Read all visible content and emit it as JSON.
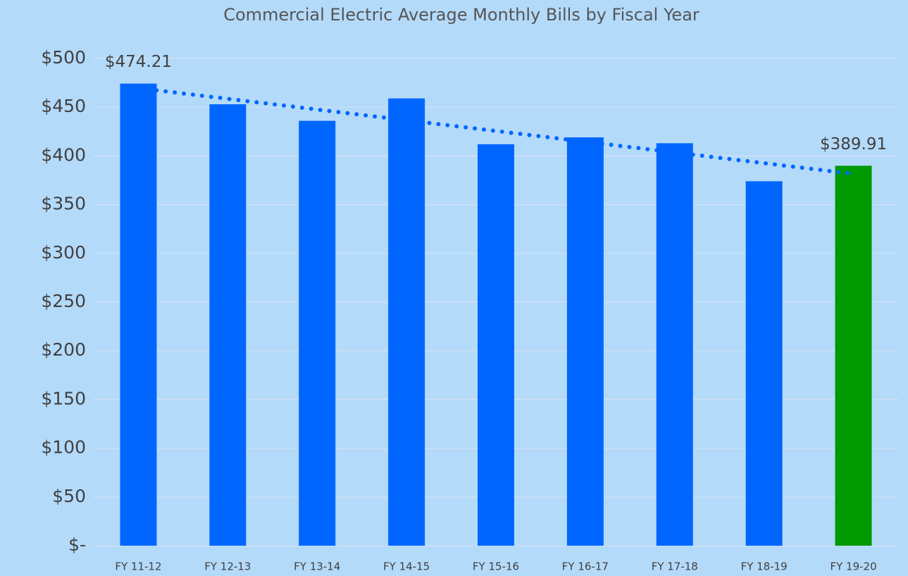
{
  "chart_data": {
    "type": "bar",
    "title": "Commercial Electric Average Monthly Bills by Fiscal Year",
    "categories": [
      "FY 11-12",
      "FY 12-13",
      "FY 13-14",
      "FY 14-15",
      "FY 15-16",
      "FY 16-17",
      "FY 17-18",
      "FY 18-19",
      "FY 19-20"
    ],
    "values": [
      474.21,
      453,
      436,
      459,
      412,
      419,
      413,
      374,
      389.91
    ],
    "value_labels": [
      "$474.21",
      null,
      null,
      null,
      null,
      null,
      null,
      null,
      "$389.91"
    ],
    "colors": [
      "#0066ff",
      "#0066ff",
      "#0066ff",
      "#0066ff",
      "#0066ff",
      "#0066ff",
      "#0066ff",
      "#0066ff",
      "#009900"
    ],
    "ylim": [
      0,
      500
    ],
    "yticks": [
      {
        "value": 0,
        "label": "$-"
      },
      {
        "value": 50,
        "label": "$50"
      },
      {
        "value": 100,
        "label": "$100"
      },
      {
        "value": 150,
        "label": "$150"
      },
      {
        "value": 200,
        "label": "$200"
      },
      {
        "value": 250,
        "label": "$250"
      },
      {
        "value": 300,
        "label": "$300"
      },
      {
        "value": 350,
        "label": "$350"
      },
      {
        "value": 400,
        "label": "$400"
      },
      {
        "value": 450,
        "label": "$450"
      },
      {
        "value": 500,
        "label": "$500"
      }
    ],
    "grid": true,
    "trendline": {
      "type": "linear",
      "color": "#0066ff",
      "style": "dotted"
    }
  }
}
